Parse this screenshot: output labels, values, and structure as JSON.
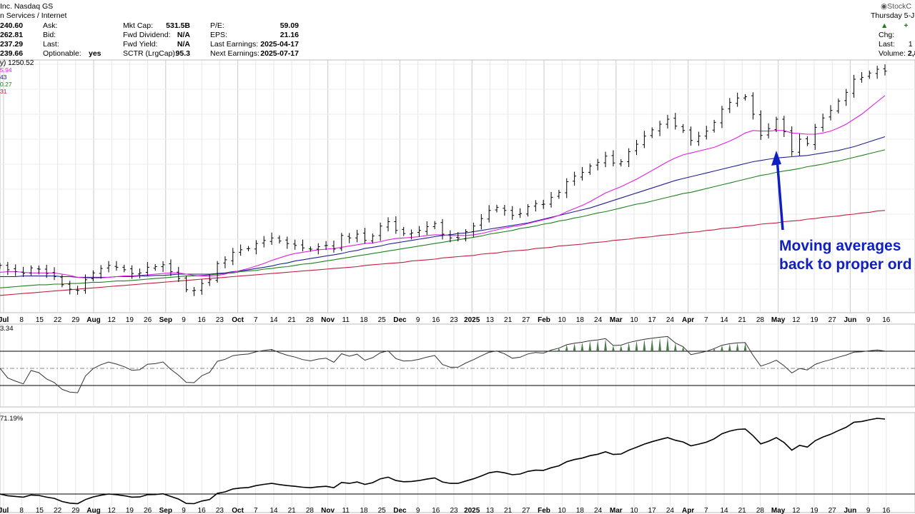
{
  "header": {
    "company_line": "Inc.  Nasdaq GS",
    "sector": "n Services / Internet",
    "logo": "StockC",
    "date_line": "Thursday  5-J",
    "prices": [
      "240.60",
      "262.81",
      "237.29",
      "239.66"
    ],
    "labels1": [
      "Ask:",
      "Bid:",
      "Last:",
      "Optionable:"
    ],
    "optionable": "yes",
    "labels2": [
      "Mkt Cap:",
      "Fwd Dividend:",
      "Fwd Yield:",
      "SCTR (LrgCap):"
    ],
    "values2": [
      "531.5B",
      "N/A",
      "N/A",
      "95.3"
    ],
    "labels3": [
      "P/E:",
      "EPS:",
      "Last Earnings:",
      "Next Earnings:"
    ],
    "values3": [
      "59.09",
      "21.16",
      "2025-04-17",
      "2025-07-17"
    ],
    "right_labels": [
      "Chg:",
      "Last:",
      "Volume:"
    ],
    "right_values": [
      "",
      "1",
      "2,8"
    ]
  },
  "legend": {
    "price_label": "y) 1250.52",
    "ma_values": [
      "5.94",
      "43",
      "0.27",
      "31"
    ],
    "ma_colors": [
      "#e020e0",
      "#202090",
      "#208020",
      "#c02040"
    ]
  },
  "indicators": {
    "rsi_label": "3.34",
    "perf_label": "71.19%"
  },
  "annotation": {
    "line1": "Moving averages",
    "line2": "back to proper ord",
    "color": "#1020c0"
  },
  "chart_data": {
    "type": "ohlc",
    "x_ticks": [
      "Jul",
      "8",
      "15",
      "22",
      "29",
      "Aug",
      "12",
      "19",
      "26",
      "Sep",
      "9",
      "16",
      "23",
      "Oct",
      "7",
      "14",
      "21",
      "28",
      "Nov",
      "11",
      "18",
      "25",
      "Dec",
      "9",
      "16",
      "23",
      "2025",
      "13",
      "21",
      "27",
      "Feb",
      "10",
      "18",
      "24",
      "Mar",
      "10",
      "17",
      "24",
      "Apr",
      "7",
      "14",
      "21",
      "28",
      "May",
      "12",
      "19",
      "27",
      "Jun",
      "9",
      "16"
    ],
    "bold_ticks": [
      "Jul",
      "Aug",
      "Sep",
      "Oct",
      "Nov",
      "Dec",
      "2025",
      "Feb",
      "Mar",
      "Apr",
      "May",
      "Jun"
    ],
    "price_close": [
      378,
      371,
      368,
      365,
      374,
      372,
      365,
      360,
      347,
      340,
      338,
      355,
      366,
      373,
      378,
      375,
      371,
      365,
      366,
      375,
      376,
      379,
      368,
      357,
      339,
      338,
      349,
      355,
      381,
      387,
      399,
      403,
      405,
      413,
      418,
      422,
      417,
      413,
      410,
      406,
      404,
      408,
      410,
      404,
      426,
      422,
      428,
      418,
      425,
      441,
      448,
      434,
      429,
      430,
      434,
      440,
      445,
      428,
      422,
      422,
      432,
      441,
      453,
      466,
      471,
      466,
      458,
      461,
      472,
      477,
      476,
      487,
      495,
      512,
      521,
      527,
      537,
      543,
      553,
      542,
      544,
      560,
      572,
      585,
      595,
      604,
      612,
      601,
      594,
      578,
      585,
      593,
      607,
      628,
      639,
      646,
      648,
      620,
      586,
      597,
      612,
      592,
      560,
      580,
      573,
      599,
      614,
      626,
      641,
      655,
      676,
      679,
      686,
      692,
      689
    ],
    "ma20": [
      367,
      368,
      368,
      367,
      366,
      366,
      366,
      366,
      364,
      362,
      359,
      358,
      358,
      358,
      359,
      360,
      361,
      361,
      362,
      363,
      364,
      365,
      366,
      366,
      364,
      362,
      361,
      361,
      362,
      364,
      367,
      370,
      373,
      377,
      381,
      386,
      390,
      394,
      397,
      399,
      401,
      403,
      404,
      405,
      407,
      409,
      411,
      413,
      414,
      416,
      419,
      421,
      422,
      423,
      424,
      426,
      427,
      427,
      426,
      426,
      426,
      427,
      429,
      432,
      435,
      438,
      440,
      442,
      445,
      448,
      451,
      454,
      458,
      464,
      469,
      474,
      480,
      487,
      494,
      499,
      504,
      510,
      516,
      523,
      530,
      537,
      544,
      550,
      555,
      558,
      561,
      564,
      567,
      572,
      577,
      583,
      590,
      594,
      593,
      593,
      594,
      594,
      590,
      589,
      588,
      588,
      590,
      593,
      598,
      604,
      612,
      620,
      630,
      640,
      650
    ],
    "ma50": [
      360,
      360,
      360,
      361,
      361,
      361,
      361,
      361,
      360,
      360,
      359,
      359,
      359,
      359,
      359,
      360,
      360,
      360,
      361,
      361,
      362,
      362,
      363,
      364,
      364,
      364,
      364,
      364,
      365,
      366,
      368,
      369,
      371,
      373,
      375,
      377,
      380,
      382,
      385,
      387,
      389,
      391,
      393,
      395,
      397,
      400,
      402,
      405,
      407,
      409,
      412,
      414,
      416,
      418,
      420,
      422,
      424,
      426,
      427,
      429,
      430,
      432,
      434,
      436,
      438,
      440,
      442,
      444,
      446,
      449,
      452,
      455,
      458,
      461,
      464,
      467,
      470,
      474,
      478,
      482,
      486,
      490,
      494,
      498,
      502,
      506,
      510,
      514,
      517,
      520,
      523,
      526,
      529,
      532,
      535,
      538,
      541,
      544,
      546,
      548,
      550,
      551,
      552,
      553,
      554,
      556,
      558,
      560,
      562,
      565,
      568,
      572,
      576,
      580,
      584
    ],
    "ma100": [
      342,
      343,
      344,
      345,
      346,
      347,
      347,
      348,
      348,
      349,
      349,
      350,
      351,
      351,
      352,
      353,
      353,
      354,
      355,
      356,
      357,
      358,
      359,
      360,
      361,
      361,
      362,
      363,
      364,
      365,
      366,
      368,
      369,
      370,
      372,
      373,
      375,
      376,
      378,
      380,
      381,
      383,
      385,
      387,
      389,
      391,
      393,
      395,
      397,
      399,
      401,
      403,
      405,
      407,
      409,
      411,
      413,
      415,
      417,
      419,
      421,
      423,
      425,
      428,
      430,
      432,
      434,
      437,
      439,
      441,
      444,
      446,
      449,
      451,
      454,
      456,
      459,
      462,
      464,
      467,
      470,
      473,
      476,
      478,
      481,
      484,
      487,
      490,
      493,
      495,
      498,
      501,
      504,
      507,
      510,
      513,
      516,
      519,
      522,
      524,
      527,
      529,
      531,
      533,
      536,
      538,
      540,
      543,
      545,
      548,
      551,
      554,
      557,
      560,
      563
    ],
    "ma200": [
      330,
      331,
      332,
      333,
      334,
      335,
      336,
      337,
      338,
      339,
      340,
      341,
      342,
      343,
      344,
      345,
      346,
      347,
      348,
      349,
      350,
      351,
      352,
      353,
      354,
      355,
      356,
      357,
      358,
      359,
      360,
      361,
      362,
      363,
      364,
      365,
      366,
      367,
      368,
      369,
      370,
      371,
      372,
      373,
      374,
      375,
      376,
      378,
      379,
      380,
      381,
      382,
      383,
      385,
      386,
      387,
      388,
      390,
      391,
      392,
      393,
      394,
      396,
      397,
      398,
      400,
      401,
      402,
      403,
      405,
      406,
      407,
      409,
      410,
      411,
      412,
      414,
      415,
      416,
      418,
      419,
      420,
      422,
      423,
      424,
      426,
      427,
      428,
      430,
      431,
      432,
      434,
      435,
      437,
      438,
      439,
      441,
      442,
      444,
      445,
      446,
      448,
      449,
      450,
      452,
      453,
      455,
      456,
      457,
      459,
      460,
      462,
      463,
      465,
      466
    ]
  }
}
